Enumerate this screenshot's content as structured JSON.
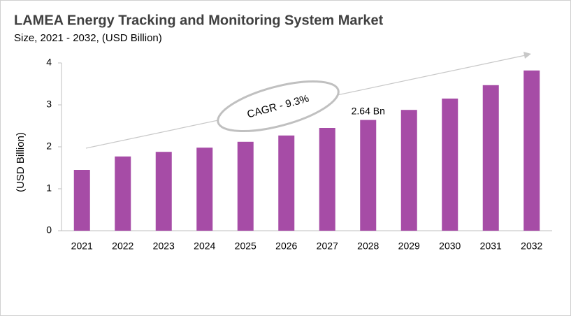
{
  "chart_data": {
    "type": "bar",
    "title": "LAMEA Energy Tracking and Monitoring System Market",
    "subtitle": "Size, 2021 - 2032, (USD Billion)",
    "y_label": "(USD Billion)",
    "annotation": "CAGR - 9.3%",
    "categories": [
      "2021",
      "2022",
      "2023",
      "2024",
      "2025",
      "2026",
      "2027",
      "2028",
      "2029",
      "2030",
      "2031",
      "2032"
    ],
    "values": [
      1.45,
      1.77,
      1.88,
      1.98,
      2.12,
      2.27,
      2.45,
      2.64,
      2.88,
      3.15,
      3.47,
      3.82
    ],
    "value_labels": [
      null,
      null,
      null,
      null,
      null,
      null,
      null,
      "2.64 Bn",
      null,
      null,
      null,
      null
    ],
    "color": "#a64ca6",
    "ylim": [
      0,
      4
    ],
    "yticks": [
      0,
      1,
      2,
      3,
      4
    ],
    "grid": false
  }
}
